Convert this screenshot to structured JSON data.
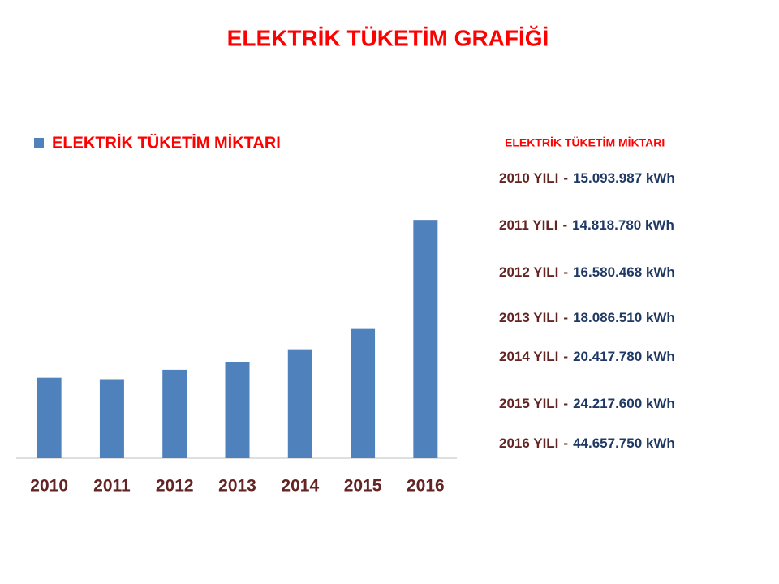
{
  "title": "ELEKTRİK TÜKETİM GRAFİĞİ",
  "chart_data": {
    "type": "bar",
    "categories": [
      "2010",
      "2011",
      "2012",
      "2013",
      "2014",
      "2015",
      "2016"
    ],
    "series": [
      {
        "name": "ELEKTRİK TÜKETİM MİKTARI",
        "color": "#4f81bd",
        "values": [
          15093987,
          14818780,
          16580468,
          18086510,
          20417780,
          24217600,
          44657750
        ]
      }
    ],
    "ylim": [
      0,
      50000000
    ],
    "grid": false,
    "legend": "top-left"
  },
  "list": {
    "title": "ELEKTRİK TÜKETİM MİKTARI",
    "separator": "-",
    "items": [
      {
        "year": "2010 YILI",
        "amount": "15.093.987 kWh"
      },
      {
        "year": "2011 YILI",
        "amount": "14.818.780 kWh"
      },
      {
        "year": "2012 YILI",
        "amount": "16.580.468 kWh"
      },
      {
        "year": "2013 YILI",
        "amount": "18.086.510 kWh"
      },
      {
        "year": "2014 YILI",
        "amount": "20.417.780 kWh"
      },
      {
        "year": "2015 YILI",
        "amount": "24.217.600 kWh"
      },
      {
        "year": "2016 YILI",
        "amount": "44.657.750 kWh"
      }
    ]
  }
}
